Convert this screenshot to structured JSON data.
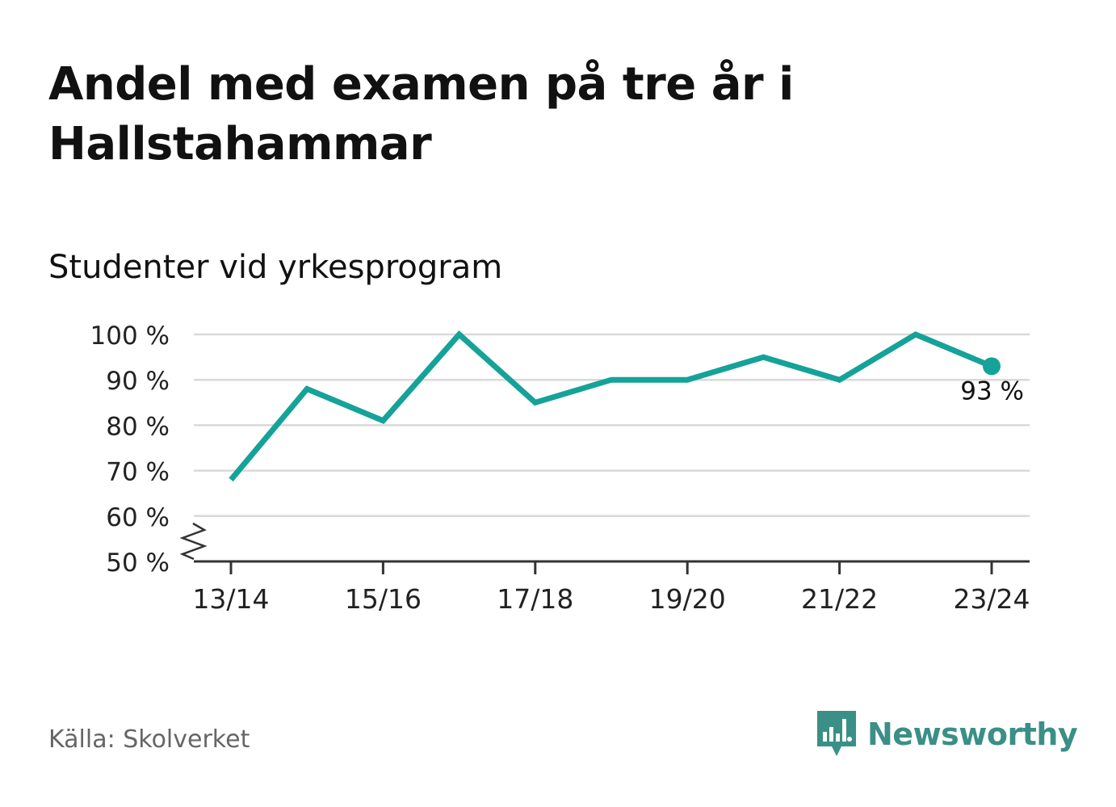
{
  "title": "Andel med examen på tre år i Hallstahammar",
  "subtitle": "Studenter vid yrkesprogram",
  "source": "Källa: Skolverket",
  "brand": "Newsworthy",
  "colors": {
    "line": "#15a299",
    "grid": "#d9d9d9",
    "axis": "#333333",
    "brand": "#3a8f86"
  },
  "chart_data": {
    "type": "line",
    "title": "Andel med examen på tre år i Hallstahammar",
    "subtitle": "Studenter vid yrkesprogram",
    "x": [
      "13/14",
      "14/15",
      "15/16",
      "16/17",
      "17/18",
      "18/19",
      "19/20",
      "20/21",
      "21/22",
      "22/23",
      "23/24"
    ],
    "xticks": [
      "13/14",
      "15/16",
      "17/18",
      "19/20",
      "21/22",
      "23/24"
    ],
    "series": [
      {
        "values": [
          68,
          88,
          81,
          100,
          85,
          90,
          90,
          95,
          90,
          100,
          93
        ]
      }
    ],
    "ylim": [
      50,
      100
    ],
    "yticks": [
      100,
      90,
      80,
      70,
      60,
      50
    ],
    "ytick_labels": [
      "100 %",
      "90 %",
      "80 %",
      "70 %",
      "60 %",
      "50 %"
    ],
    "broken_axis": true,
    "grid": true,
    "annotation": {
      "index": 10,
      "label": "93 %"
    }
  }
}
